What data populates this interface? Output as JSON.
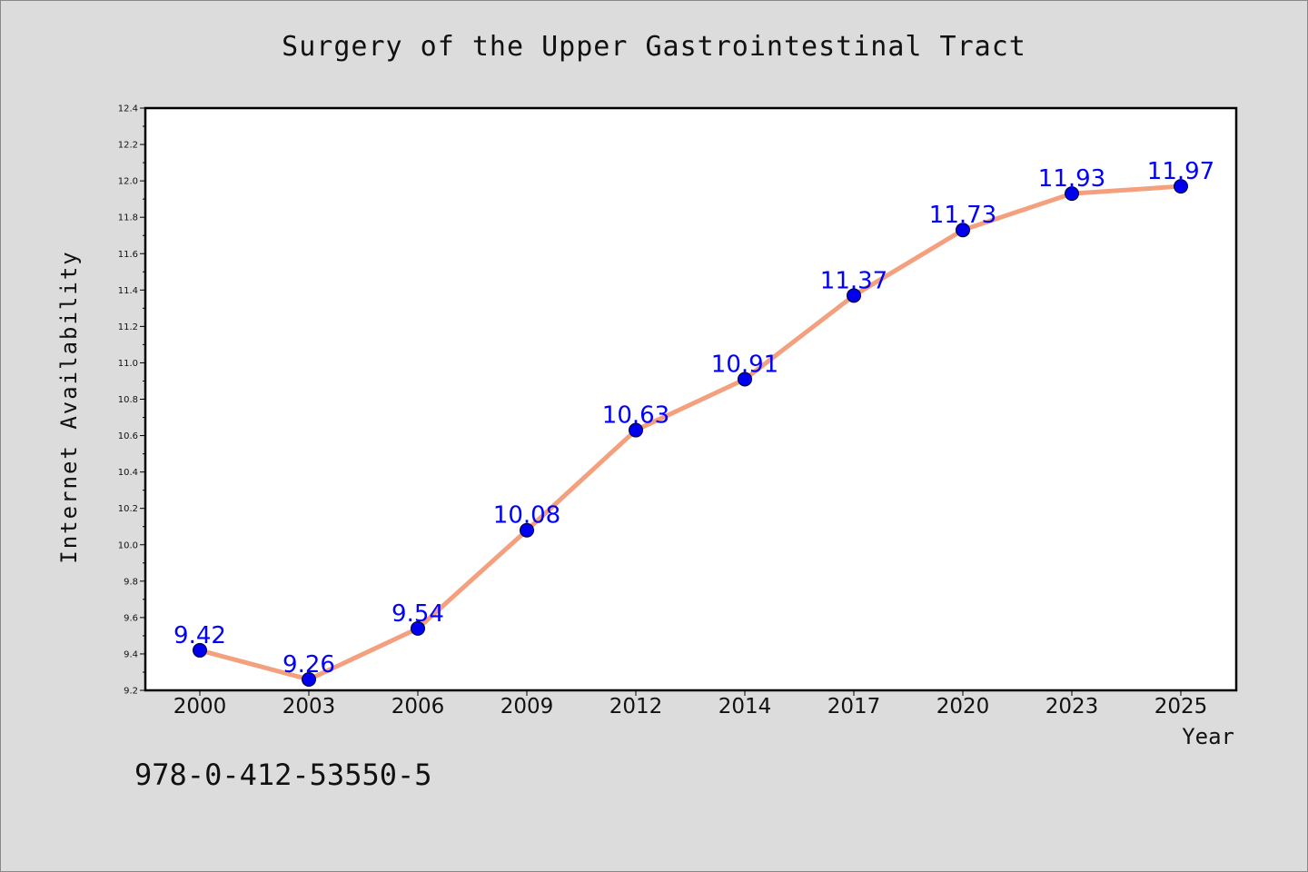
{
  "footer": {
    "isbn": "978-0-412-53550-5"
  },
  "chart_data": {
    "type": "line",
    "title": "Surgery of the Upper Gastrointestinal Tract",
    "xlabel": "Year",
    "ylabel": "Internet Availability",
    "categories": [
      "2000",
      "2003",
      "2006",
      "2009",
      "2012",
      "2014",
      "2017",
      "2020",
      "2023",
      "2025"
    ],
    "series": [
      {
        "values": [
          9.42,
          9.26,
          9.54,
          10.08,
          10.63,
          10.91,
          11.37,
          11.73,
          11.93,
          11.97
        ],
        "value_labels": [
          "9.42",
          "9.26",
          "9.54",
          "10.08",
          "10.63",
          "10.91",
          "11.37",
          "11.73",
          "11.93",
          "11.97"
        ]
      }
    ],
    "ylim": [
      9.2,
      12.4
    ],
    "yticks": [
      "9.2",
      "9.4",
      "9.6",
      "9.8",
      "10.0",
      "10.2",
      "10.4",
      "10.6",
      "10.8",
      "11.0",
      "11.2",
      "11.4",
      "11.6",
      "11.8",
      "12.0",
      "12.2",
      "12.4"
    ],
    "grid": false,
    "legend": "none",
    "colors": {
      "line": "#f4a07e",
      "marker": "#0000ee",
      "label": "#0000ff",
      "plot_background": "#ffffff",
      "page_background": "#dcdcdc"
    }
  }
}
